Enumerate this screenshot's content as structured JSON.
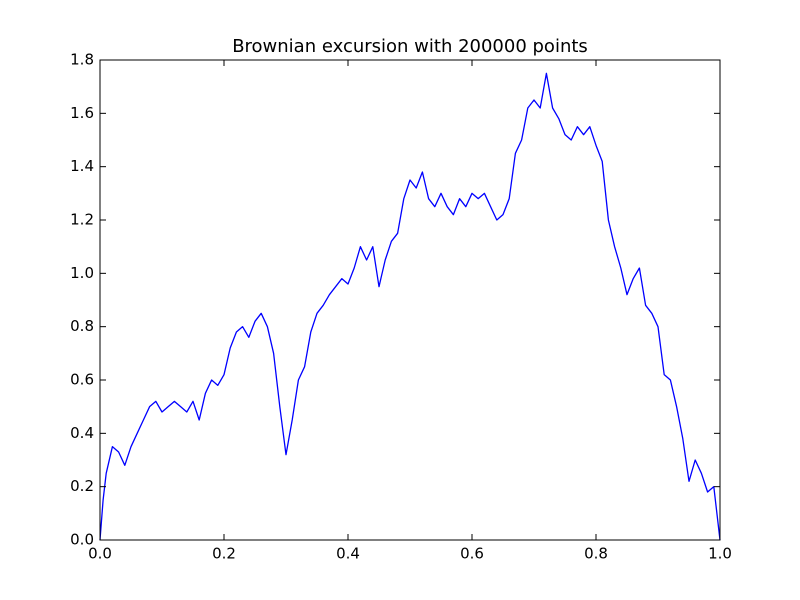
{
  "chart_data": {
    "type": "line",
    "title": "Brownian excursion with 200000 points",
    "x": [
      0,
      0.005,
      0.01,
      0.02,
      0.03,
      0.04,
      0.05,
      0.06,
      0.07,
      0.08,
      0.09,
      0.1,
      0.11,
      0.12,
      0.13,
      0.14,
      0.15,
      0.16,
      0.17,
      0.18,
      0.19,
      0.2,
      0.21,
      0.22,
      0.23,
      0.24,
      0.25,
      0.26,
      0.27,
      0.28,
      0.29,
      0.3,
      0.31,
      0.32,
      0.33,
      0.34,
      0.35,
      0.36,
      0.37,
      0.38,
      0.39,
      0.4,
      0.41,
      0.42,
      0.43,
      0.44,
      0.45,
      0.46,
      0.47,
      0.48,
      0.49,
      0.5,
      0.51,
      0.52,
      0.53,
      0.54,
      0.55,
      0.56,
      0.57,
      0.58,
      0.59,
      0.6,
      0.61,
      0.62,
      0.63,
      0.64,
      0.65,
      0.66,
      0.67,
      0.68,
      0.69,
      0.7,
      0.71,
      0.72,
      0.73,
      0.74,
      0.75,
      0.76,
      0.77,
      0.78,
      0.79,
      0.8,
      0.81,
      0.82,
      0.83,
      0.84,
      0.85,
      0.86,
      0.87,
      0.88,
      0.89,
      0.9,
      0.91,
      0.92,
      0.93,
      0.94,
      0.95,
      0.96,
      0.97,
      0.98,
      0.99,
      1
    ],
    "values": [
      0,
      0.15,
      0.25,
      0.35,
      0.33,
      0.28,
      0.35,
      0.4,
      0.45,
      0.5,
      0.52,
      0.48,
      0.5,
      0.52,
      0.5,
      0.48,
      0.52,
      0.45,
      0.55,
      0.6,
      0.58,
      0.62,
      0.72,
      0.78,
      0.8,
      0.76,
      0.82,
      0.85,
      0.8,
      0.7,
      0.5,
      0.32,
      0.45,
      0.6,
      0.65,
      0.78,
      0.85,
      0.88,
      0.92,
      0.95,
      0.98,
      0.96,
      1.02,
      1.1,
      1.05,
      1.1,
      0.95,
      1.05,
      1.12,
      1.15,
      1.28,
      1.35,
      1.32,
      1.38,
      1.28,
      1.25,
      1.3,
      1.25,
      1.22,
      1.28,
      1.25,
      1.3,
      1.28,
      1.3,
      1.25,
      1.2,
      1.22,
      1.28,
      1.45,
      1.5,
      1.62,
      1.65,
      1.62,
      1.75,
      1.62,
      1.58,
      1.52,
      1.5,
      1.55,
      1.52,
      1.55,
      1.48,
      1.42,
      1.2,
      1.1,
      1.02,
      0.92,
      0.98,
      1.02,
      0.88,
      0.85,
      0.8,
      0.62,
      0.6,
      0.5,
      0.38,
      0.22,
      0.3,
      0.25,
      0.18,
      0.2,
      0
    ],
    "color": "#0000ff",
    "xlim": [
      0,
      1
    ],
    "xticks": [
      {
        "value": 0,
        "label": "0.0"
      },
      0.2,
      0.4,
      0.6,
      0.8,
      {
        "value": 1,
        "label": "1.0"
      }
    ],
    "ylim": [
      0,
      1.8
    ],
    "yticks": [
      {
        "value": 0,
        "label": "0.0"
      },
      0.2,
      0.4,
      0.6,
      0.8,
      {
        "value": 1,
        "label": "1.0"
      },
      1.2,
      1.4,
      1.6,
      1.8
    ],
    "grid": false
  }
}
